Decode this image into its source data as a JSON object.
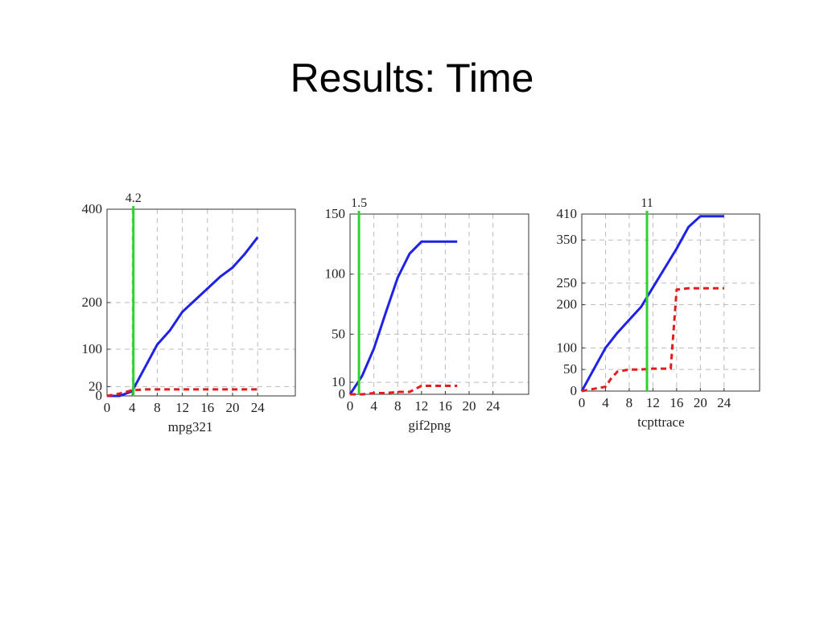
{
  "slide": {
    "title": "Results: Time"
  },
  "colors": {
    "blue_series": "#1f22e6",
    "red_series": "#e31c1c",
    "marker": "#2ed12e",
    "grid": "#bbbbbb"
  },
  "chart_data": [
    {
      "type": "line",
      "xlabel": "mpg321",
      "xlim": [
        0,
        30
      ],
      "ylim": [
        0,
        400
      ],
      "xticks": [
        0,
        4,
        8,
        12,
        16,
        20,
        24
      ],
      "yticks": [
        0,
        20,
        100,
        200,
        400
      ],
      "grid": true,
      "marker": {
        "x": 4.2,
        "label": "4.2"
      },
      "series": [
        {
          "color": "blue",
          "style": "solid",
          "x": [
            0,
            2,
            4,
            6,
            8,
            10,
            12,
            14,
            16,
            18,
            20,
            22,
            24
          ],
          "values": [
            0,
            0,
            10,
            60,
            110,
            140,
            180,
            205,
            230,
            255,
            275,
            305,
            340
          ]
        },
        {
          "color": "red",
          "style": "dashed",
          "x": [
            0,
            2,
            4,
            6,
            8,
            10,
            12,
            14,
            16,
            18,
            20,
            22,
            24
          ],
          "values": [
            0,
            5,
            12,
            14,
            14,
            14,
            14,
            14,
            14,
            14,
            14,
            14,
            14
          ]
        }
      ]
    },
    {
      "type": "line",
      "xlabel": "gif2png",
      "xlim": [
        0,
        30
      ],
      "ylim": [
        0,
        150
      ],
      "xticks": [
        0,
        4,
        8,
        12,
        16,
        20,
        24
      ],
      "yticks": [
        0,
        10,
        50,
        100,
        150
      ],
      "grid": true,
      "marker": {
        "x": 1.5,
        "label": "1.5"
      },
      "series": [
        {
          "color": "blue",
          "style": "solid",
          "x": [
            0,
            2,
            4,
            6,
            8,
            10,
            12,
            14,
            16,
            18
          ],
          "values": [
            0,
            15,
            38,
            68,
            97,
            117,
            127,
            127,
            127,
            127
          ]
        },
        {
          "color": "red",
          "style": "dashed",
          "x": [
            0,
            2,
            4,
            6,
            8,
            10,
            12,
            14,
            16,
            18
          ],
          "values": [
            0,
            0,
            1,
            1,
            2,
            2,
            7,
            7,
            7,
            7
          ]
        }
      ]
    },
    {
      "type": "line",
      "xlabel": "tcpttrace",
      "xlim": [
        0,
        30
      ],
      "ylim": [
        0,
        410
      ],
      "xticks": [
        0,
        4,
        8,
        12,
        16,
        20,
        24
      ],
      "yticks": [
        0,
        50,
        100,
        200,
        250,
        350,
        410
      ],
      "grid": true,
      "marker": {
        "x": 11,
        "label": "11"
      },
      "series": [
        {
          "color": "blue",
          "style": "solid",
          "x": [
            0,
            2,
            4,
            6,
            8,
            10,
            12,
            14,
            16,
            18,
            20,
            22,
            24
          ],
          "values": [
            0,
            50,
            100,
            135,
            165,
            195,
            240,
            285,
            330,
            380,
            405,
            405,
            405
          ]
        },
        {
          "color": "red",
          "style": "dashed",
          "x": [
            0,
            2,
            4,
            5,
            6,
            8,
            10,
            12,
            14,
            15,
            16,
            18,
            20,
            22,
            24
          ],
          "values": [
            0,
            5,
            10,
            30,
            45,
            50,
            50,
            52,
            52,
            52,
            235,
            238,
            238,
            238,
            238
          ]
        }
      ]
    }
  ]
}
